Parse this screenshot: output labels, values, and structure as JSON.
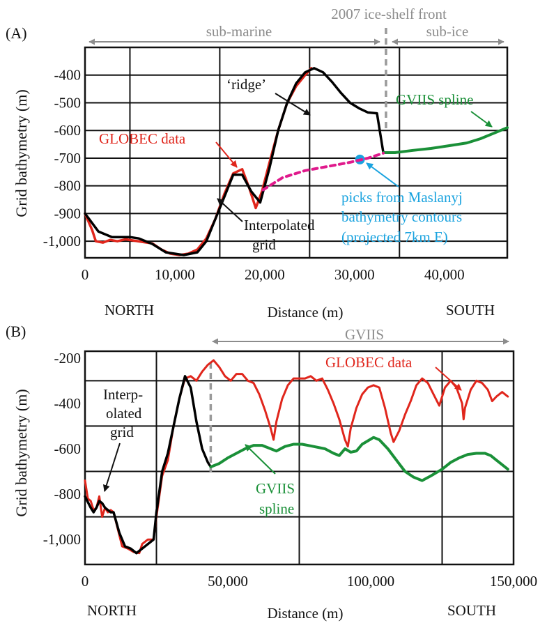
{
  "colors": {
    "globec": "#e0261c",
    "grid": "#000000",
    "gviis_spline": "#1a9038",
    "maslanyj": "#1aa3df",
    "dashed_link": "#e01a8c",
    "gray_label": "#8c8c8c",
    "ice_front": "#9a9a9a"
  },
  "chart_data": [
    {
      "panel": "(A)",
      "type": "line",
      "ylabel": "Grid bathymetry (m)",
      "xlabel": "Distance (m)",
      "x_left_label": "NORTH",
      "x_right_label": "SOUTH",
      "xlim": [
        0,
        47000
      ],
      "ylim": [
        -1060,
        -300
      ],
      "xticks": [
        0,
        10000,
        20000,
        30000,
        40000
      ],
      "xtick_labels": [
        "0",
        "10,000",
        "20,000",
        "30,000",
        "40,000"
      ],
      "yticks": [
        -400,
        -500,
        -600,
        -700,
        -800,
        -900,
        -1000
      ],
      "ytick_labels": [
        "-400",
        "-500",
        "-600",
        "-700",
        "-800",
        "-900",
        "-1,000"
      ],
      "top_labels": {
        "sub_marine": "sub-marine",
        "ice_shelf_front": "2007 ice-shelf front",
        "sub_ice": "sub-ice"
      },
      "ice_shelf_front_x": 33500,
      "series": [
        {
          "name": "GLOBEC data",
          "values": [
            [
              0,
              -900
            ],
            [
              800,
              -960
            ],
            [
              1200,
              -1000
            ],
            [
              2000,
              -1005
            ],
            [
              2800,
              -995
            ],
            [
              3600,
              -1000
            ],
            [
              4500,
              -993
            ],
            [
              5500,
              -998
            ],
            [
              6500,
              -1003
            ],
            [
              7500,
              -1008
            ],
            [
              8500,
              -1030
            ],
            [
              9500,
              -1045
            ],
            [
              10500,
              -1050
            ],
            [
              11500,
              -1045
            ],
            [
              12500,
              -1030
            ],
            [
              13500,
              -990
            ],
            [
              14500,
              -920
            ],
            [
              15500,
              -830
            ],
            [
              16500,
              -755
            ],
            [
              17500,
              -740
            ],
            [
              18300,
              -810
            ],
            [
              19000,
              -880
            ],
            [
              19700,
              -820
            ],
            [
              20500,
              -720
            ],
            [
              21500,
              -600
            ],
            [
              22500,
              -500
            ],
            [
              23500,
              -440
            ],
            [
              24500,
              -400
            ],
            [
              25200,
              -375
            ]
          ]
        },
        {
          "name": "Interpolated grid",
          "values": [
            [
              0,
              -900
            ],
            [
              1500,
              -965
            ],
            [
              3000,
              -985
            ],
            [
              5000,
              -985
            ],
            [
              6000,
              -990
            ],
            [
              7500,
              -1010
            ],
            [
              9000,
              -1040
            ],
            [
              11000,
              -1050
            ],
            [
              12500,
              -1040
            ],
            [
              13500,
              -1000
            ],
            [
              14500,
              -920
            ],
            [
              15500,
              -840
            ],
            [
              16500,
              -760
            ],
            [
              17500,
              -760
            ],
            [
              18500,
              -820
            ],
            [
              19500,
              -860
            ],
            [
              20500,
              -740
            ],
            [
              21500,
              -600
            ],
            [
              22500,
              -500
            ],
            [
              23500,
              -430
            ],
            [
              24500,
              -390
            ],
            [
              25500,
              -375
            ],
            [
              26500,
              -390
            ],
            [
              27500,
              -425
            ],
            [
              28500,
              -465
            ],
            [
              29500,
              -500
            ],
            [
              30500,
              -520
            ],
            [
              31500,
              -535
            ],
            [
              32500,
              -538
            ],
            [
              33200,
              -680
            ]
          ]
        },
        {
          "name": "GVIIS spline",
          "values": [
            [
              33200,
              -680
            ],
            [
              34500,
              -680
            ],
            [
              36500,
              -672
            ],
            [
              38500,
              -665
            ],
            [
              40500,
              -655
            ],
            [
              42500,
              -645
            ],
            [
              44000,
              -630
            ],
            [
              45500,
              -610
            ],
            [
              47000,
              -590
            ]
          ]
        },
        {
          "name": "picks from Maslanyj bathymetry contours (projected 7km E)",
          "values": [
            [
              30600,
              -705
            ]
          ]
        },
        {
          "name": "",
          "values": [
            [
              19800,
              -815
            ],
            [
              22000,
              -770
            ],
            [
              24500,
              -745
            ],
            [
              27000,
              -730
            ],
            [
              29500,
              -715
            ],
            [
              31500,
              -700
            ],
            [
              33200,
              -682
            ]
          ]
        }
      ],
      "annotations": {
        "ridge": "‘ridge’",
        "globec": "GLOBEC data",
        "gviis": "GVIIS spline",
        "interp_line1": "Interpolated",
        "interp_line2": "grid",
        "maslanyj_line1": "picks from Maslanyj",
        "maslanyj_line2": "bathymetry contours",
        "maslanyj_line3": "(projected 7km E)"
      }
    },
    {
      "panel": "(B)",
      "type": "line",
      "ylabel": "Grid bathymetry (m)",
      "xlabel": "Distance (m)",
      "x_left_label": "NORTH",
      "x_right_label": "SOUTH",
      "xlim": [
        0,
        150000
      ],
      "ylim": [
        -1110,
        -170
      ],
      "xticks": [
        0,
        50000,
        100000,
        150000
      ],
      "xtick_labels": [
        "0",
        "50,000",
        "100,000",
        "150,000"
      ],
      "yticks": [
        -200,
        -400,
        -600,
        -800,
        -1000
      ],
      "ytick_labels": [
        "-200",
        "-400",
        "-600",
        "-800",
        "-1,000"
      ],
      "top_labels": {
        "gviis": "GVIIS"
      },
      "ice_shelf_front_x": 44000,
      "series": [
        {
          "name": "GLOBEC data",
          "values": [
            [
              0,
              -740
            ],
            [
              1000,
              -820
            ],
            [
              2000,
              -830
            ],
            [
              3000,
              -870
            ],
            [
              4000,
              -860
            ],
            [
              5000,
              -810
            ],
            [
              6000,
              -900
            ],
            [
              7000,
              -860
            ],
            [
              8000,
              -880
            ],
            [
              9000,
              -870
            ],
            [
              10000,
              -880
            ],
            [
              12000,
              -980
            ],
            [
              13000,
              -1030
            ],
            [
              15000,
              -1040
            ],
            [
              17000,
              -1055
            ],
            [
              19000,
              -1060
            ],
            [
              20000,
              -1020
            ],
            [
              22000,
              -1000
            ],
            [
              24000,
              -1000
            ],
            [
              25000,
              -900
            ],
            [
              27000,
              -720
            ],
            [
              29000,
              -650
            ],
            [
              31000,
              -500
            ],
            [
              33000,
              -380
            ],
            [
              35000,
              -290
            ],
            [
              37000,
              -280
            ],
            [
              39000,
              -300
            ],
            [
              41000,
              -260
            ],
            [
              43000,
              -230
            ],
            [
              45000,
              -210
            ],
            [
              47000,
              -240
            ],
            [
              49000,
              -280
            ],
            [
              51000,
              -300
            ],
            [
              53000,
              -270
            ],
            [
              55000,
              -270
            ],
            [
              57000,
              -300
            ],
            [
              59000,
              -310
            ],
            [
              61000,
              -360
            ],
            [
              63000,
              -430
            ],
            [
              65000,
              -510
            ],
            [
              66000,
              -560
            ],
            [
              67000,
              -480
            ],
            [
              69000,
              -380
            ],
            [
              71000,
              -320
            ],
            [
              73000,
              -290
            ],
            [
              75000,
              -290
            ],
            [
              77000,
              -290
            ],
            [
              79000,
              -280
            ],
            [
              81000,
              -300
            ],
            [
              83000,
              -290
            ],
            [
              85000,
              -340
            ],
            [
              87000,
              -400
            ],
            [
              89000,
              -470
            ],
            [
              91000,
              -560
            ],
            [
              92000,
              -590
            ],
            [
              93000,
              -510
            ],
            [
              95000,
              -420
            ],
            [
              97000,
              -360
            ],
            [
              99000,
              -330
            ],
            [
              101000,
              -320
            ],
            [
              103000,
              -330
            ],
            [
              105000,
              -420
            ],
            [
              107000,
              -530
            ],
            [
              108000,
              -570
            ],
            [
              110000,
              -520
            ],
            [
              112000,
              -450
            ],
            [
              114000,
              -390
            ],
            [
              116000,
              -320
            ],
            [
              118000,
              -290
            ],
            [
              120000,
              -310
            ],
            [
              122000,
              -360
            ],
            [
              124000,
              -410
            ],
            [
              126000,
              -330
            ],
            [
              128000,
              -300
            ],
            [
              130000,
              -330
            ],
            [
              132000,
              -400
            ],
            [
              132500,
              -470
            ],
            [
              133000,
              -420
            ],
            [
              135000,
              -340
            ],
            [
              137000,
              -300
            ],
            [
              139000,
              -310
            ],
            [
              141000,
              -340
            ],
            [
              142500,
              -390
            ],
            [
              144000,
              -370
            ],
            [
              146000,
              -350
            ],
            [
              148000,
              -370
            ]
          ]
        },
        {
          "name": "Interpolated grid",
          "values": [
            [
              0,
              -810
            ],
            [
              2000,
              -860
            ],
            [
              3000,
              -880
            ],
            [
              4000,
              -860
            ],
            [
              5000,
              -830
            ],
            [
              6000,
              -840
            ],
            [
              7000,
              -860
            ],
            [
              8000,
              -870
            ],
            [
              9000,
              -880
            ],
            [
              10000,
              -880
            ],
            [
              12000,
              -970
            ],
            [
              14000,
              -1030
            ],
            [
              16000,
              -1040
            ],
            [
              18000,
              -1060
            ],
            [
              20000,
              -1040
            ],
            [
              22000,
              -1020
            ],
            [
              24000,
              -1000
            ],
            [
              25000,
              -880
            ],
            [
              27000,
              -700
            ],
            [
              29000,
              -620
            ],
            [
              31000,
              -500
            ],
            [
              33000,
              -380
            ],
            [
              35000,
              -280
            ],
            [
              37000,
              -330
            ],
            [
              39000,
              -480
            ],
            [
              41000,
              -600
            ],
            [
              43000,
              -660
            ],
            [
              44000,
              -680
            ]
          ]
        },
        {
          "name": "GVIIS spline",
          "values": [
            [
              44000,
              -680
            ],
            [
              47000,
              -665
            ],
            [
              50000,
              -640
            ],
            [
              53000,
              -620
            ],
            [
              56000,
              -600
            ],
            [
              59000,
              -585
            ],
            [
              62000,
              -585
            ],
            [
              65000,
              -600
            ],
            [
              67000,
              -610
            ],
            [
              70000,
              -590
            ],
            [
              73000,
              -580
            ],
            [
              76000,
              -580
            ],
            [
              80000,
              -590
            ],
            [
              84000,
              -600
            ],
            [
              87000,
              -620
            ],
            [
              89000,
              -630
            ],
            [
              91000,
              -600
            ],
            [
              93000,
              -615
            ],
            [
              95000,
              -610
            ],
            [
              97000,
              -580
            ],
            [
              99000,
              -565
            ],
            [
              101000,
              -550
            ],
            [
              103000,
              -560
            ],
            [
              106000,
              -600
            ],
            [
              109000,
              -650
            ],
            [
              112000,
              -700
            ],
            [
              115000,
              -725
            ],
            [
              118000,
              -740
            ],
            [
              121000,
              -720
            ],
            [
              125000,
              -690
            ],
            [
              128000,
              -660
            ],
            [
              131000,
              -640
            ],
            [
              134000,
              -625
            ],
            [
              137000,
              -620
            ],
            [
              140000,
              -620
            ],
            [
              142000,
              -630
            ],
            [
              144000,
              -650
            ],
            [
              146000,
              -670
            ],
            [
              148000,
              -690
            ]
          ]
        }
      ],
      "annotations": {
        "globec": "GLOBEC data",
        "interp_line1": "Interp-",
        "interp_line2": "olated",
        "interp_line3": "grid",
        "gviis_line1": "GVIIS",
        "gviis_line2": "spline"
      }
    }
  ]
}
